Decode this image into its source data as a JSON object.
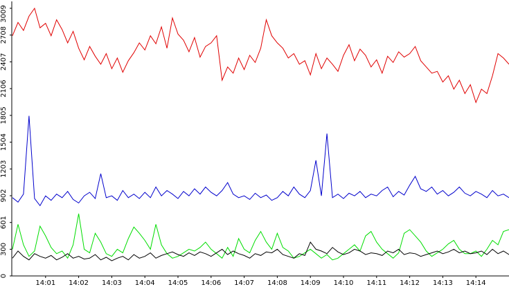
{
  "chart_data": {
    "type": "line",
    "ylim": [
      0,
      3009
    ],
    "yticks": [
      0,
      300,
      601,
      902,
      1203,
      1504,
      1805,
      2106,
      2407,
      2708,
      3009
    ],
    "xticks": [
      "14:01",
      "14:02",
      "14:03",
      "14:04",
      "14:05",
      "14:06",
      "14:07",
      "14:08",
      "14:09",
      "14:10",
      "14:11",
      "14:12",
      "14:13",
      "14:14"
    ],
    "series": [
      {
        "color": "#e00000",
        "values": [
          2700,
          2850,
          2760,
          2920,
          3009,
          2790,
          2840,
          2700,
          2880,
          2770,
          2620,
          2750,
          2560,
          2430,
          2580,
          2470,
          2380,
          2500,
          2330,
          2450,
          2290,
          2420,
          2510,
          2620,
          2540,
          2700,
          2610,
          2800,
          2560,
          2900,
          2720,
          2650,
          2520,
          2680,
          2460,
          2580,
          2620,
          2700,
          2200,
          2350,
          2280,
          2450,
          2320,
          2480,
          2400,
          2560,
          2880,
          2700,
          2620,
          2560,
          2450,
          2500,
          2380,
          2420,
          2260,
          2500,
          2330,
          2450,
          2380,
          2300,
          2480,
          2600,
          2420,
          2550,
          2480,
          2350,
          2430,
          2280,
          2470,
          2400,
          2520,
          2460,
          2500,
          2580,
          2420,
          2350,
          2280,
          2300,
          2180,
          2250,
          2100,
          2200,
          2050,
          2150,
          1950,
          2100,
          2050,
          2250,
          2500,
          2450,
          2380
        ]
      },
      {
        "color": "#0000cc",
        "values": [
          880,
          830,
          920,
          1800,
          870,
          790,
          900,
          850,
          920,
          880,
          950,
          860,
          820,
          900,
          940,
          870,
          1150,
          880,
          900,
          850,
          960,
          880,
          920,
          870,
          940,
          880,
          1000,
          900,
          960,
          920,
          870,
          950,
          900,
          980,
          920,
          1000,
          940,
          900,
          960,
          1050,
          920,
          880,
          900,
          860,
          930,
          880,
          910,
          850,
          880,
          950,
          900,
          1000,
          920,
          880,
          960,
          1300,
          900,
          1600,
          880,
          920,
          870,
          930,
          900,
          950,
          880,
          920,
          900,
          960,
          1000,
          890,
          950,
          910,
          1020,
          1120,
          980,
          950,
          1000,
          920,
          960,
          900,
          940,
          1000,
          930,
          900,
          950,
          920,
          880,
          960,
          900,
          920,
          880
        ]
      },
      {
        "color": "#00dd00",
        "values": [
          300,
          580,
          350,
          220,
          280,
          560,
          450,
          320,
          250,
          280,
          200,
          350,
          700,
          300,
          260,
          480,
          380,
          250,
          220,
          300,
          260,
          420,
          550,
          480,
          400,
          300,
          580,
          350,
          250,
          200,
          220,
          260,
          300,
          280,
          320,
          380,
          300,
          250,
          200,
          320,
          220,
          420,
          300,
          260,
          400,
          500,
          380,
          300,
          480,
          320,
          280,
          200,
          220,
          260,
          300,
          250,
          200,
          240,
          180,
          200,
          250,
          300,
          350,
          280,
          450,
          500,
          380,
          300,
          250,
          200,
          260,
          480,
          520,
          450,
          380,
          280,
          220,
          260,
          300,
          360,
          400,
          300,
          250,
          250,
          280,
          220,
          300,
          400,
          350,
          500,
          520
        ]
      },
      {
        "color": "#000000",
        "values": [
          200,
          280,
          220,
          180,
          250,
          220,
          200,
          230,
          180,
          210,
          250,
          200,
          220,
          190,
          200,
          240,
          180,
          210,
          170,
          200,
          220,
          180,
          240,
          200,
          220,
          260,
          200,
          230,
          250,
          270,
          240,
          220,
          260,
          230,
          270,
          250,
          220,
          260,
          300,
          240,
          280,
          250,
          230,
          200,
          250,
          230,
          270,
          260,
          300,
          240,
          220,
          200,
          250,
          230,
          380,
          300,
          280,
          250,
          320,
          270,
          240,
          260,
          300,
          280,
          240,
          260,
          250,
          230,
          280,
          260,
          300,
          240,
          260,
          250,
          220,
          240,
          260,
          280,
          250,
          270,
          300,
          260,
          280,
          250,
          260,
          280,
          240,
          300,
          250,
          280,
          240
        ]
      }
    ]
  }
}
